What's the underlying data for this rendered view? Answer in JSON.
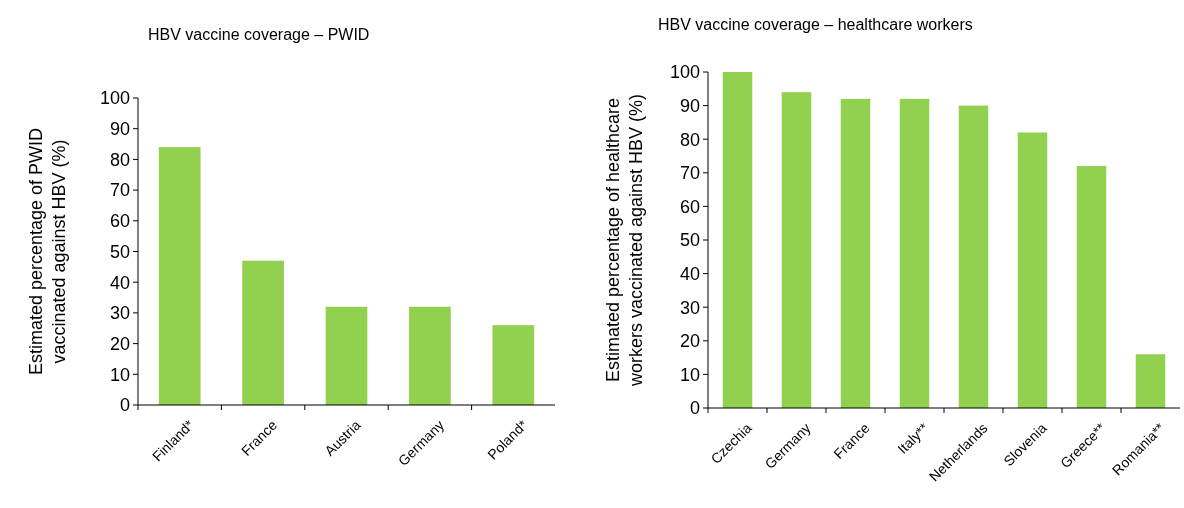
{
  "chart_data": [
    {
      "type": "bar",
      "title": "HBV vaccine coverage – PWID",
      "ylabel": "Estimated percentage of PWID vaccinated against HBV (%)",
      "categories": [
        "Finland*",
        "France",
        "Austria",
        "Germany",
        "Poland*"
      ],
      "values": [
        84,
        47,
        32,
        32,
        26
      ],
      "color": "#92d050",
      "ylim": [
        0,
        100
      ],
      "yticks": [
        0,
        10,
        20,
        30,
        40,
        50,
        60,
        70,
        80,
        90,
        100
      ],
      "grid": false
    },
    {
      "type": "bar",
      "title": "HBV vaccine coverage – healthcare workers",
      "ylabel": "Estimated percentage of healthcare workers vaccinated against HBV (%)",
      "categories": [
        "Czechia",
        "Germany",
        "France",
        "Italy**",
        "Netherlands",
        "Slovenia",
        "Greece**",
        "Romania**"
      ],
      "values": [
        100,
        94,
        92,
        92,
        90,
        82,
        72,
        16
      ],
      "color": "#92d050",
      "ylim": [
        0,
        100
      ],
      "yticks": [
        0,
        10,
        20,
        30,
        40,
        50,
        60,
        70,
        80,
        90,
        100
      ],
      "grid": false
    }
  ]
}
